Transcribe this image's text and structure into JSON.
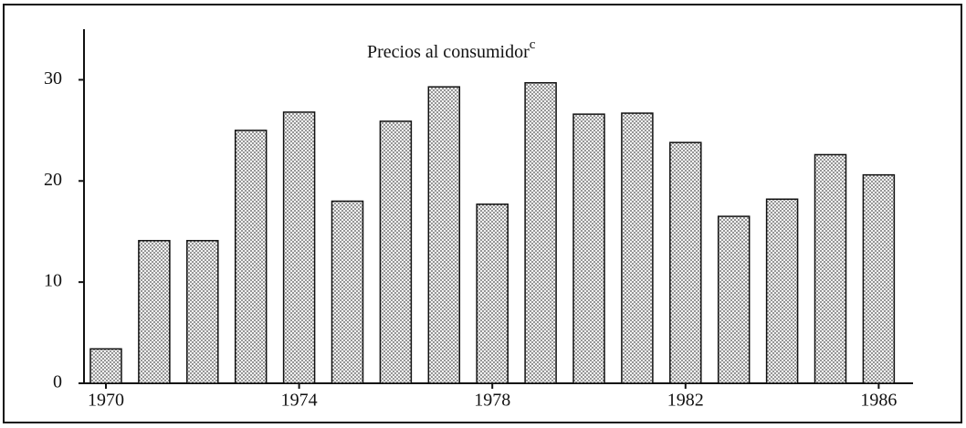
{
  "chart_data": {
    "type": "bar",
    "title": "Precios al consumidor",
    "title_superscript": "c",
    "categories": [
      "1970",
      null,
      null,
      null,
      "1974",
      null,
      null,
      null,
      "1978",
      null,
      null,
      null,
      "1982",
      null,
      null,
      null,
      "1986"
    ],
    "values": [
      3.4,
      14.1,
      14.1,
      25.0,
      26.8,
      18.0,
      25.9,
      29.3,
      17.7,
      29.7,
      26.6,
      26.7,
      23.8,
      16.5,
      18.2,
      22.6,
      20.6
    ],
    "ylim": [
      0,
      35
    ],
    "yticks": [
      0,
      10,
      20,
      30
    ],
    "grid": false,
    "color": "#d8d8d8"
  }
}
